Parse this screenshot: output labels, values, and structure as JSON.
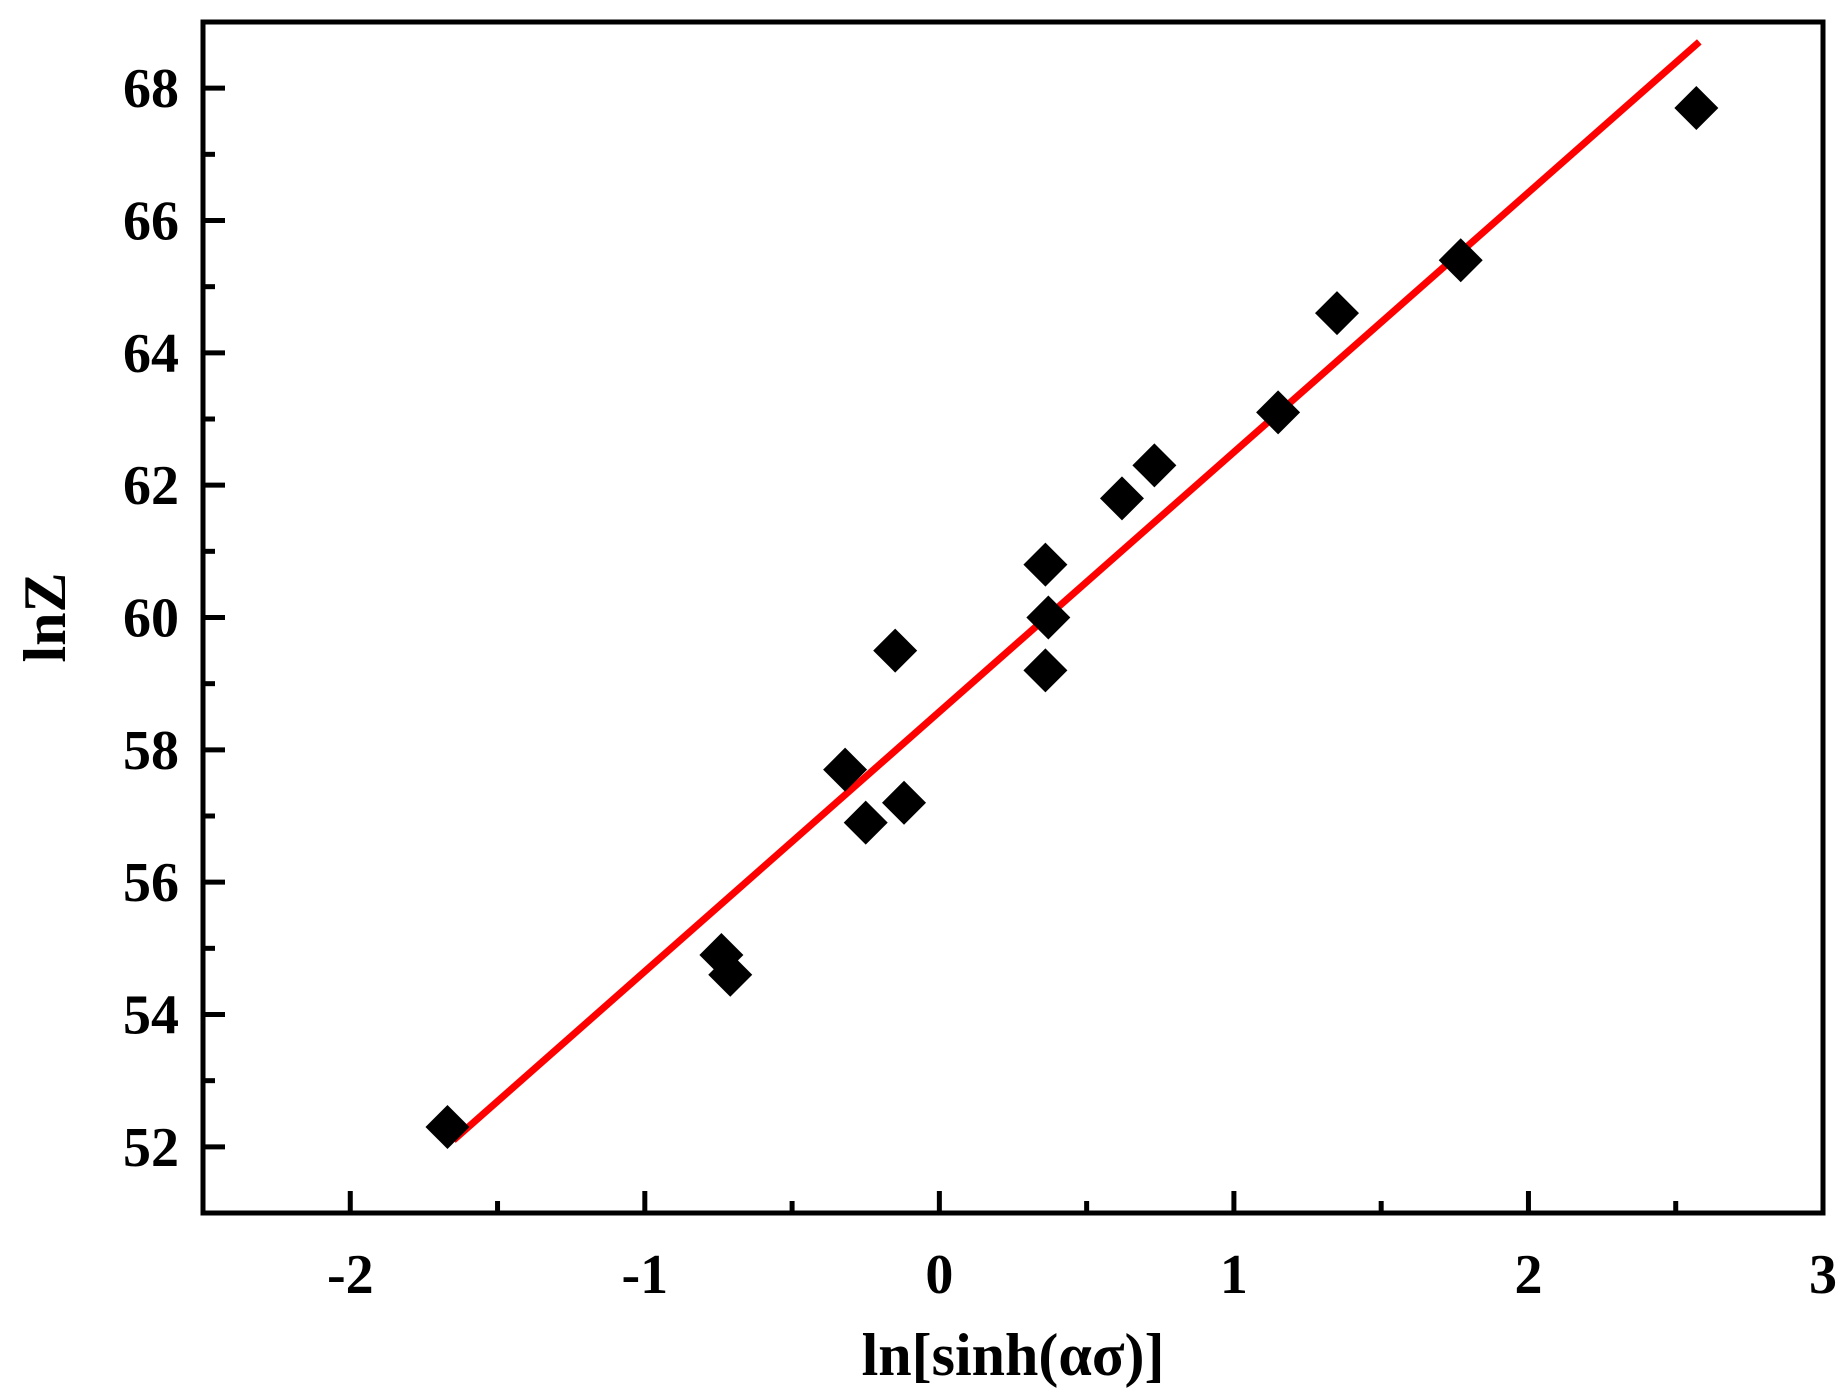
{
  "chart_data": {
    "type": "scatter",
    "xlabel": "ln[sinh(ασ)]",
    "ylabel": "lnZ",
    "xlim": [
      -2.5,
      3
    ],
    "ylim": [
      51,
      69
    ],
    "x_ticks": [
      -2,
      -1,
      0,
      1,
      2,
      3
    ],
    "x_tick_labels": [
      "-2",
      "-1",
      "0",
      "1",
      "2",
      "3"
    ],
    "y_ticks": [
      52,
      54,
      56,
      58,
      60,
      62,
      64,
      66,
      68
    ],
    "y_tick_labels": [
      "52",
      "54",
      "56",
      "58",
      "60",
      "62",
      "64",
      "66",
      "68"
    ],
    "grid": false,
    "legend": "none",
    "series": [
      {
        "kind": "scatter",
        "marker": "diamond",
        "color": "#000000",
        "points": [
          {
            "x": -1.67,
            "y": 52.3
          },
          {
            "x": -0.74,
            "y": 54.9
          },
          {
            "x": -0.71,
            "y": 54.6
          },
          {
            "x": -0.32,
            "y": 57.7
          },
          {
            "x": -0.25,
            "y": 56.9
          },
          {
            "x": -0.15,
            "y": 59.5
          },
          {
            "x": -0.12,
            "y": 57.2
          },
          {
            "x": 0.36,
            "y": 60.8
          },
          {
            "x": 0.37,
            "y": 60.0
          },
          {
            "x": 0.36,
            "y": 59.2
          },
          {
            "x": 0.62,
            "y": 61.8
          },
          {
            "x": 0.73,
            "y": 62.3
          },
          {
            "x": 1.15,
            "y": 63.1
          },
          {
            "x": 1.35,
            "y": 64.6
          },
          {
            "x": 1.77,
            "y": 65.4
          },
          {
            "x": 2.57,
            "y": 67.7
          }
        ]
      },
      {
        "kind": "line",
        "color": "#ff0000",
        "x": [
          -1.65,
          2.58
        ],
        "y": [
          52.1,
          68.7
        ]
      }
    ]
  }
}
